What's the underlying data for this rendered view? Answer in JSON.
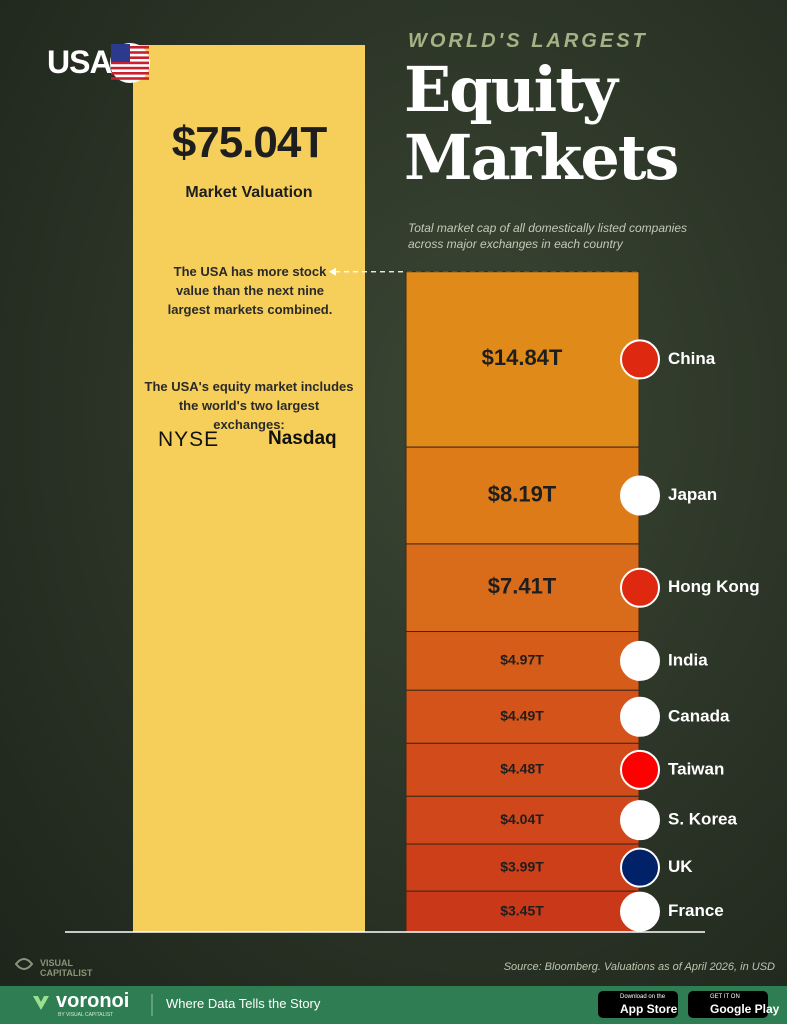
{
  "chart_data": {
    "type": "bar",
    "kicker": "WORLD'S LARGEST",
    "title": "Equity Markets",
    "subtitle": "Total market cap of all domestically listed companies across major exchanges in each country",
    "highlight": {
      "name": "USA",
      "value": 75.04,
      "value_label": "$75.04T",
      "label": "Market Valuation",
      "color": "#f6cf5a"
    },
    "annotations": [
      "The USA has more stock value than the next nine largest markets combined.",
      "The USA's equity market includes the world's two largest exchanges:"
    ],
    "exchanges": [
      "NYSE",
      "Nasdaq"
    ],
    "categories": [
      "China",
      "Japan",
      "Hong Kong",
      "India",
      "Canada",
      "Taiwan",
      "S. Korea",
      "UK",
      "France"
    ],
    "values": [
      14.84,
      8.19,
      7.41,
      4.97,
      4.49,
      4.48,
      4.04,
      3.99,
      3.45
    ],
    "value_labels": [
      "$14.84T",
      "$8.19T",
      "$7.41T",
      "$4.97T",
      "$4.49T",
      "$4.48T",
      "$4.04T",
      "$3.99T",
      "$3.45T"
    ],
    "colors": [
      "#e08a1a",
      "#dd7b19",
      "#d96c1a",
      "#d65c1a",
      "#d4531a",
      "#d14c1a",
      "#cf471a",
      "#cc3f18",
      "#c93818"
    ],
    "source": "Source: Bloomberg. Valuations as of April 2026, in USD"
  },
  "footer": {
    "publisher": "VISUAL CAPITALIST",
    "brand": "voronoi",
    "brand_sub": "BY VISUAL CAPITALIST",
    "tagline": "Where Data Tells the Story",
    "app_store": [
      "Download on the",
      "App Store"
    ],
    "google_play": [
      "GET IT ON",
      "Google Play"
    ]
  }
}
